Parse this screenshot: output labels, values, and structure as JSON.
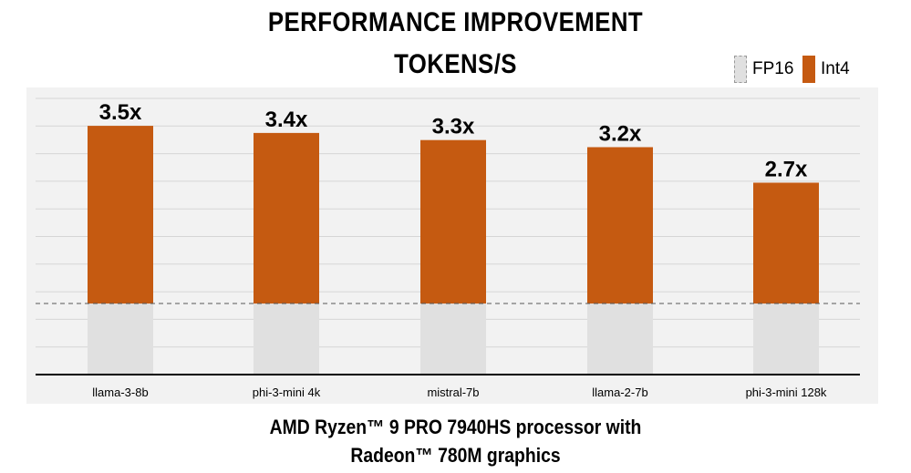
{
  "chart_data": {
    "type": "bar",
    "title": "PERFORMANCE IMPROVEMENT",
    "subtitle": "TOKENS/S",
    "categories": [
      "llama-3-8b",
      "phi-3-mini 4k",
      "mistral-7b",
      "llama-2-7b",
      "phi-3-mini 128k"
    ],
    "series": [
      {
        "name": "FP16",
        "values": [
          1,
          1,
          1,
          1,
          1
        ],
        "color": "#e0e0e0"
      },
      {
        "name": "Int4",
        "values": [
          3.5,
          3.4,
          3.3,
          3.2,
          2.7
        ],
        "color": "#c55a11"
      }
    ],
    "data_labels": [
      "3.5x",
      "3.4x",
      "3.3x",
      "3.2x",
      "2.7x"
    ],
    "baseline": 1,
    "ylim": [
      0,
      3.95
    ],
    "grid": true,
    "legend_position": "top-right",
    "footer": [
      "AMD Ryzen™ 9 PRO 7940HS processor with",
      "Radeon™ 780M graphics"
    ]
  }
}
